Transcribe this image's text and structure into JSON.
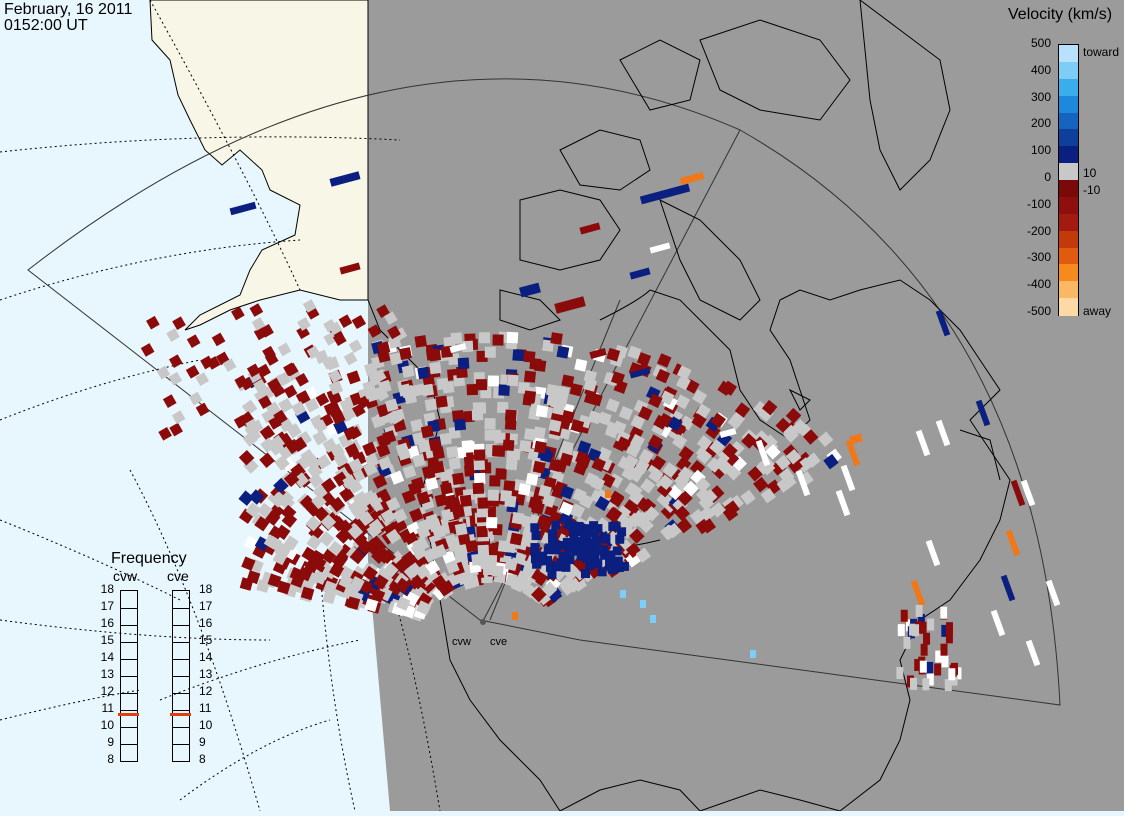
{
  "header": {
    "date": "February, 16 2011",
    "time": "0152:00 UT"
  },
  "velocity_legend": {
    "title": "Velocity (km/s)",
    "ticks": [
      "500",
      "400",
      "300",
      "200",
      "100",
      "0",
      "-100",
      "-200",
      "-300",
      "-400",
      "-500"
    ],
    "inner_labels": [
      "10",
      "-10"
    ],
    "top_label": "toward",
    "bottom_label": "away",
    "colors": [
      "#b8e2fb",
      "#7dcdf7",
      "#3aaeed",
      "#1e88dd",
      "#1565c0",
      "#0d3f9b",
      "#0a1f7f",
      "#c8c8c8",
      "#7a0a0a",
      "#8f0f0f",
      "#a31a10",
      "#c23a0c",
      "#e05a10",
      "#f78a1e",
      "#fbb864",
      "#fdd9a6"
    ]
  },
  "frequency_panel": {
    "title": "Frequency",
    "radars": [
      {
        "name": "cvw",
        "freq_mhz": 10.7
      },
      {
        "name": "cve",
        "freq_mhz": 10.7
      }
    ],
    "scale": [
      "18",
      "17",
      "16",
      "15",
      "14",
      "13",
      "12",
      "11",
      "10",
      "9",
      "8"
    ]
  },
  "sites": [
    {
      "name": "cvw"
    },
    {
      "name": "cve"
    }
  ],
  "colors": {
    "night": "#9b9b9b",
    "ocean": "#e8f6fd",
    "land": "#f8f6e6",
    "ground_scatter": "#c8c8c8",
    "marker": "#e04010"
  }
}
